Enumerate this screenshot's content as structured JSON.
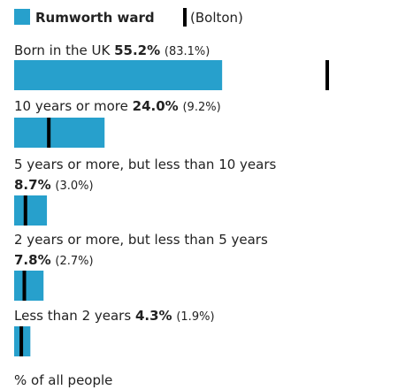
{
  "chart_data": {
    "type": "bar",
    "orientation": "horizontal",
    "legend": [
      {
        "label": "Rumworth ward",
        "marker": "bar",
        "color": "#27a0cc"
      },
      {
        "label": "(Bolton)",
        "marker": "line",
        "color": "#000000"
      }
    ],
    "categories": [
      "Born in the UK",
      "10 years or more",
      "5 years or more, but less than 10 years",
      "2 years or more, but less than 5 years",
      "Less than 2 years"
    ],
    "series": [
      {
        "name": "Rumworth ward",
        "values": [
          55.2,
          24.0,
          8.7,
          7.8,
          4.3
        ],
        "value_labels": [
          "55.2%",
          "24.0%",
          "8.7%",
          "7.8%",
          "4.3%"
        ]
      },
      {
        "name": "(Bolton)",
        "values": [
          83.1,
          9.2,
          3.0,
          2.7,
          1.9
        ],
        "value_labels": [
          "(83.1%)",
          "(9.2%)",
          "(3.0%)",
          "(2.7%)",
          "(1.9%)"
        ]
      }
    ],
    "xlim": [
      0,
      100
    ],
    "xlabel": "% of all people",
    "colors": {
      "bar": "#27a0cc",
      "marker": "#000000",
      "text": "#222222"
    }
  }
}
